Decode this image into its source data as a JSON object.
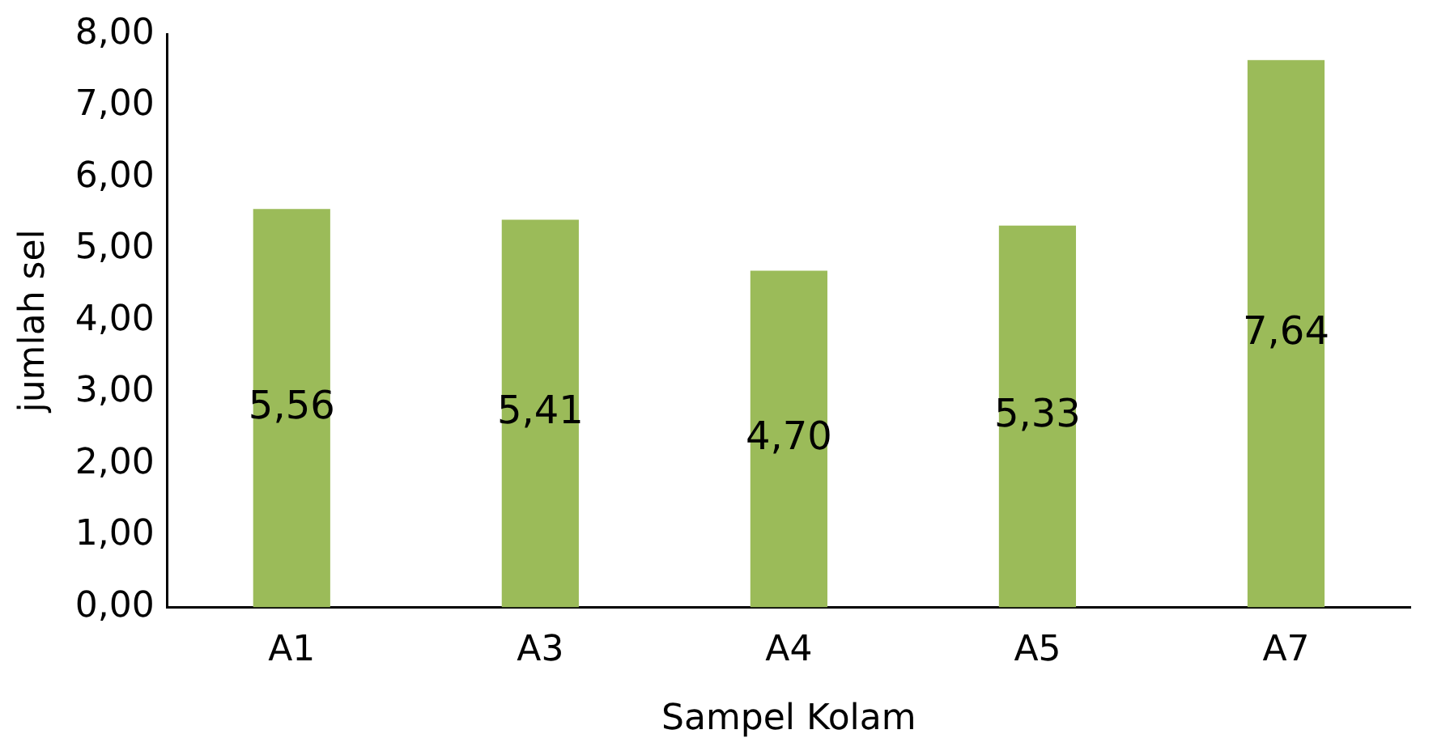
{
  "chart_data": {
    "type": "bar",
    "xlabel": "Sampel Kolam",
    "ylabel": "jumlah sel",
    "categories": [
      "A1",
      "A3",
      "A4",
      "A5",
      "A7"
    ],
    "values": [
      5.56,
      5.41,
      4.7,
      5.33,
      7.64
    ],
    "value_labels": [
      "5,56",
      "5,41",
      "4,70",
      "5,33",
      "7,64"
    ],
    "color": "#9bbb59",
    "ylim": [
      0,
      8
    ],
    "yticks": [
      {
        "value": 0,
        "label": "0,00"
      },
      {
        "value": 1,
        "label": "1,00"
      },
      {
        "value": 2,
        "label": "2,00"
      },
      {
        "value": 3,
        "label": "3,00"
      },
      {
        "value": 4,
        "label": "4,00"
      },
      {
        "value": 5,
        "label": "5,00"
      },
      {
        "value": 6,
        "label": "6,00"
      },
      {
        "value": 7,
        "label": "7,00"
      },
      {
        "value": 8,
        "label": "8,00"
      }
    ],
    "grid": false,
    "legend": false
  }
}
